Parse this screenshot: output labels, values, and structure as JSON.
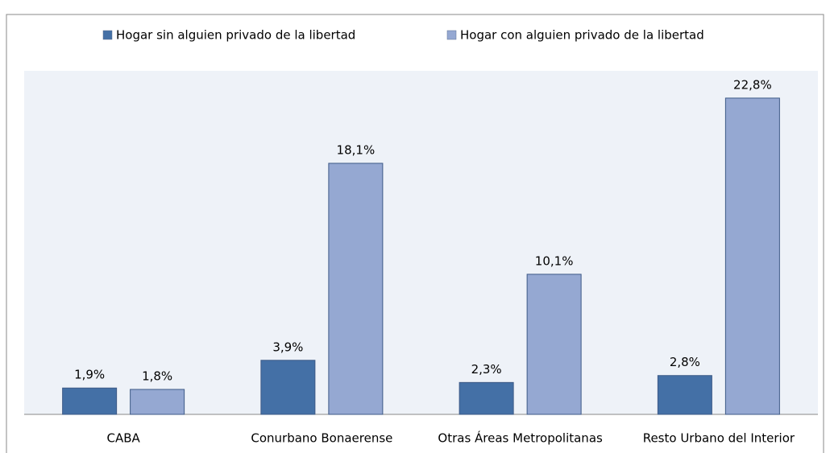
{
  "chart_data": {
    "type": "bar",
    "categories": [
      "CABA",
      "Conurbano Bonaerense",
      "Otras Áreas Metropolitanas",
      "Resto Urbano del Interior"
    ],
    "series": [
      {
        "name": "Hogar sin alguien privado de la libertad",
        "color": "#4470a6",
        "values": [
          1.9,
          3.9,
          2.3,
          2.8
        ],
        "value_labels": [
          "1,9%",
          "3,9%",
          "2,3%",
          "2,8%"
        ]
      },
      {
        "name": "Hogar con alguien privado de la libertad",
        "color": "#95a8d2",
        "values": [
          1.8,
          18.1,
          10.1,
          22.8
        ],
        "value_labels": [
          "1,8%",
          "18,1%",
          "10,1%",
          "22,8%"
        ]
      }
    ],
    "legend": "top"
  }
}
